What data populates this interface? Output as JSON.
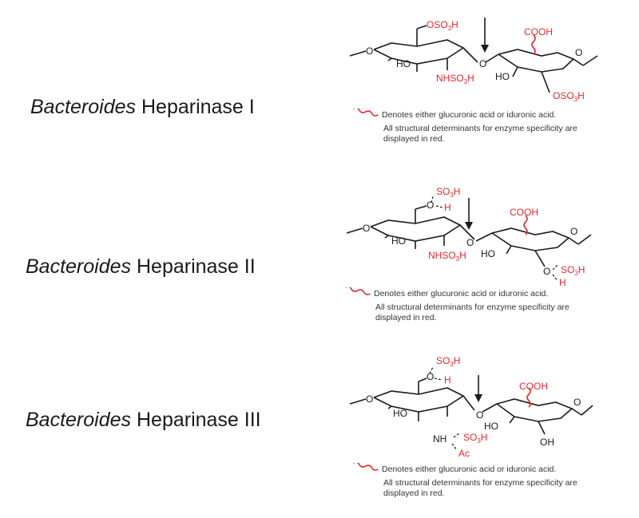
{
  "enzymes": [
    {
      "genus": "Bacteroides",
      "name": "Heparinase I"
    },
    {
      "genus": "Bacteroides",
      "name": "Heparinase II"
    },
    {
      "genus": "Bacteroides",
      "name": "Heparinase III"
    }
  ],
  "groups": {
    "oso3h": "OSO3H",
    "so3h": "SO3H",
    "cooh": "COOH",
    "nhso3h": "NHSO3H",
    "nh": "NH",
    "ho": "HO",
    "oh": "OH",
    "o": "O",
    "h": "H",
    "ac": "Ac"
  },
  "legend": {
    "wavy_note": "Denotes either glucuronic acid or iduronic acid.",
    "red_note": "All structural determinants for enzyme specificity are displayed in red."
  },
  "colors": {
    "red": "#e8262b",
    "black": "#1a1a1a",
    "text": "#333333"
  }
}
